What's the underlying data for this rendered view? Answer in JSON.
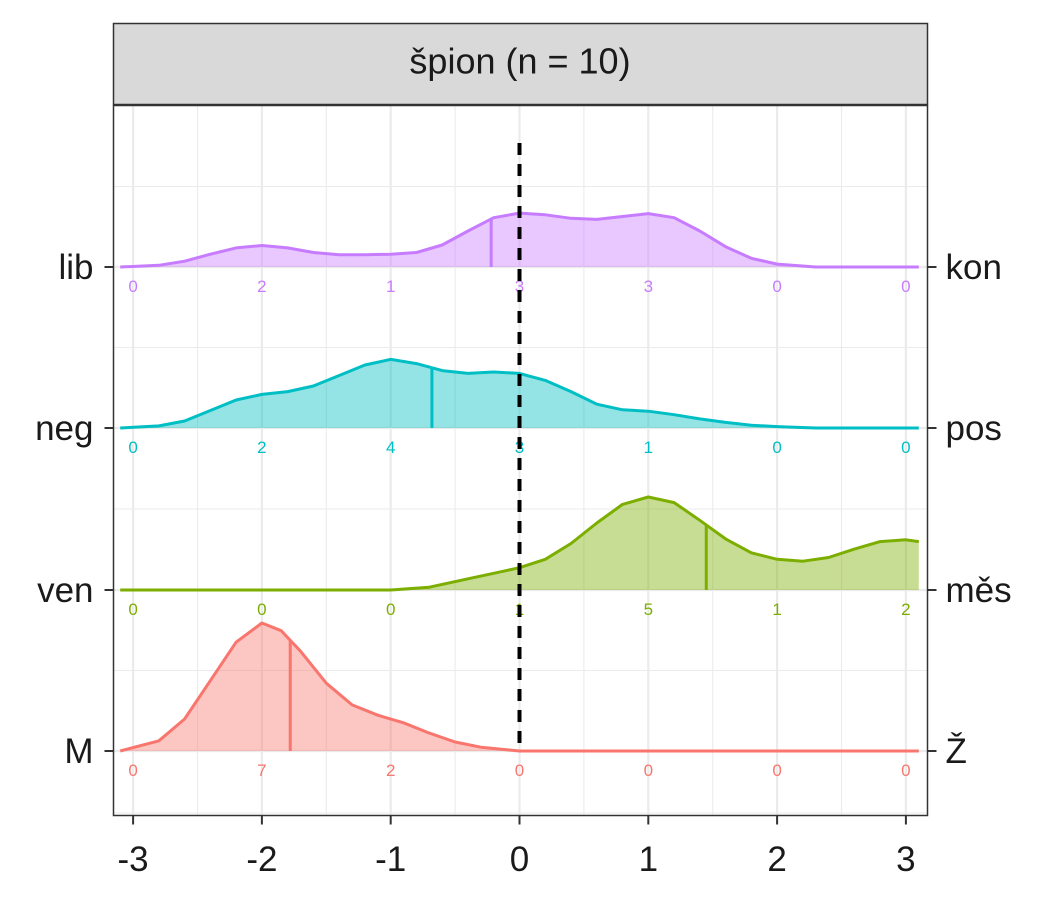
{
  "panel": {
    "strip_title": "špion (n = 10)"
  },
  "chart_data": {
    "type": "ridgeline",
    "title": "špion (n = 10)",
    "xlim": [
      -3.1,
      3.1
    ],
    "x_ticks": [
      "-3",
      "-2",
      "-1",
      "0",
      "1",
      "2",
      "3"
    ],
    "reference_line_x": 0,
    "grid": true,
    "rows": [
      {
        "left_label": "M",
        "right_label": "Ž",
        "color": "#F8766D",
        "counts": [
          "0",
          "7",
          "2",
          "0",
          "0",
          "0",
          "0"
        ],
        "mean": -1.78,
        "curve_x": [
          -3.1,
          -2.8,
          -2.6,
          -2.4,
          -2.2,
          -2.0,
          -1.85,
          -1.7,
          -1.5,
          -1.3,
          -1.1,
          -0.9,
          -0.7,
          -0.5,
          -0.3,
          -0.1,
          0.0,
          0.3,
          1.0,
          2.0,
          3.1
        ],
        "curve_y": [
          0.0,
          0.08,
          0.25,
          0.55,
          0.85,
          1.0,
          0.94,
          0.78,
          0.53,
          0.36,
          0.28,
          0.22,
          0.14,
          0.07,
          0.03,
          0.01,
          0.0,
          0.0,
          0.0,
          0.0,
          0.0
        ]
      },
      {
        "left_label": "ven",
        "right_label": "měs",
        "color": "#7CAE00",
        "counts": [
          "0",
          "0",
          "0",
          "1",
          "5",
          "1",
          "2"
        ],
        "mean": 1.45,
        "curve_x": [
          -3.1,
          -1.0,
          -0.7,
          -0.4,
          -0.2,
          0.0,
          0.2,
          0.4,
          0.6,
          0.8,
          1.0,
          1.2,
          1.4,
          1.6,
          1.8,
          2.0,
          2.2,
          2.4,
          2.6,
          2.8,
          3.0,
          3.1
        ],
        "curve_y": [
          0.0,
          0.0,
          0.03,
          0.12,
          0.18,
          0.24,
          0.33,
          0.5,
          0.72,
          0.92,
          1.0,
          0.94,
          0.75,
          0.55,
          0.4,
          0.33,
          0.31,
          0.35,
          0.44,
          0.52,
          0.54,
          0.52
        ]
      },
      {
        "left_label": "neg",
        "right_label": "pos",
        "color": "#00BFC4",
        "counts": [
          "0",
          "2",
          "4",
          "3",
          "1",
          "0",
          "0"
        ],
        "mean": -0.68,
        "curve_x": [
          -3.1,
          -2.8,
          -2.6,
          -2.4,
          -2.2,
          -2.0,
          -1.8,
          -1.6,
          -1.4,
          -1.2,
          -1.0,
          -0.8,
          -0.6,
          -0.4,
          -0.2,
          0.0,
          0.2,
          0.4,
          0.6,
          0.8,
          1.0,
          1.2,
          1.4,
          1.6,
          1.8,
          2.0,
          2.3,
          3.1
        ],
        "curve_y": [
          0.0,
          0.03,
          0.1,
          0.25,
          0.4,
          0.48,
          0.52,
          0.6,
          0.75,
          0.9,
          0.98,
          0.92,
          0.82,
          0.78,
          0.8,
          0.78,
          0.68,
          0.52,
          0.34,
          0.26,
          0.24,
          0.19,
          0.13,
          0.08,
          0.04,
          0.02,
          0.0,
          0.0
        ]
      },
      {
        "left_label": "lib",
        "right_label": "kon",
        "color": "#C77CFF",
        "counts": [
          "0",
          "2",
          "1",
          "3",
          "3",
          "0",
          "0"
        ],
        "mean": -0.22,
        "curve_x": [
          -3.1,
          -2.8,
          -2.6,
          -2.4,
          -2.2,
          -2.0,
          -1.8,
          -1.6,
          -1.4,
          -1.2,
          -1.0,
          -0.8,
          -0.6,
          -0.4,
          -0.2,
          0.0,
          0.2,
          0.4,
          0.6,
          0.8,
          1.0,
          1.2,
          1.4,
          1.6,
          1.8,
          2.0,
          2.3,
          3.1
        ],
        "curve_y": [
          0.0,
          0.03,
          0.1,
          0.22,
          0.33,
          0.37,
          0.33,
          0.25,
          0.21,
          0.21,
          0.22,
          0.25,
          0.38,
          0.62,
          0.85,
          0.93,
          0.9,
          0.84,
          0.82,
          0.87,
          0.92,
          0.85,
          0.62,
          0.35,
          0.15,
          0.05,
          0.0,
          0.0
        ]
      }
    ]
  }
}
